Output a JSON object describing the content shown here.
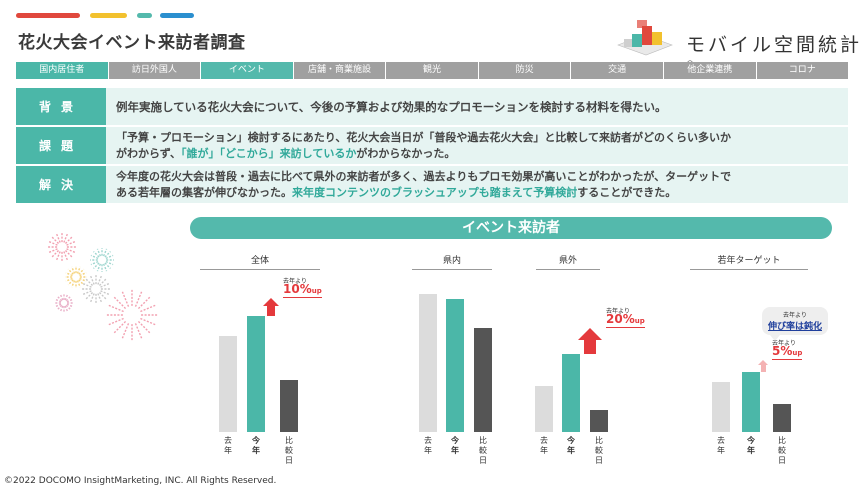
{
  "title": "花火大会イベント来訪者調査",
  "logo": {
    "text": "モバイル空間統計",
    "mark": "®"
  },
  "tabs": [
    "国内居住者",
    "訪日外国人",
    "イベント",
    "店舗・商業施設",
    "観光",
    "防災",
    "交通",
    "他企業連携",
    "コロナ"
  ],
  "active_tab": "イベント",
  "rows": {
    "background": {
      "label": "背景",
      "text": "例年実施している花火大会について、今後の予算および効果的なプロモーションを検討する材料を得たい。"
    },
    "issue": {
      "label": "課題",
      "line1": "「予算・プロモーション」検討するにあたり、花火大会当日が「普段や過去花火大会」と比較して来訪者がどのくらい多いか",
      "line2_pre": "がわからず、",
      "line2_hl": "「誰が」「どこから」来訪しているか",
      "line2_post": "がわからなかった。"
    },
    "solution": {
      "label": "解決",
      "line1": "今年度の花火大会は普段・過去に比べて県外の来訪者が多く、過去よりもプロモ効果が高いことがわかったが、ターゲットで",
      "line2_pre": "ある若年層の集客が伸びなかった。",
      "line2_hl": "来年度コンテンツのブラッシュアップも踏まえて予算検討",
      "line2_post": "することができた。"
    }
  },
  "section_title": "イベント来訪者",
  "axis_labels": {
    "last": "去年",
    "this": "今年",
    "compare": "比較日"
  },
  "charts": [
    {
      "title": "全体",
      "values": [
        96,
        116,
        52
      ],
      "note_small": "去年より",
      "note_big": "10%",
      "note_unit": "up"
    },
    {
      "title": "県内",
      "values": [
        138,
        133,
        104
      ]
    },
    {
      "title": "県外",
      "values": [
        46,
        78,
        22
      ],
      "note_small": "去年より",
      "note_big": "20%",
      "note_unit": "up"
    },
    {
      "title": "若年ターゲット",
      "values": [
        50,
        60,
        28
      ],
      "note_small": "去年より",
      "note_big": "5%",
      "note_unit": "up",
      "callout_small": "去年より",
      "callout_big": "伸び率は鈍化"
    }
  ],
  "colors": {
    "last": "#dcdcdc",
    "this": "#4bb7a8",
    "compare": "#555555",
    "up": "#e4393c",
    "accent": "#54b9ac"
  },
  "copyright": "©2022 DOCOMO InsightMarketing, INC. All Rights Reserved."
}
